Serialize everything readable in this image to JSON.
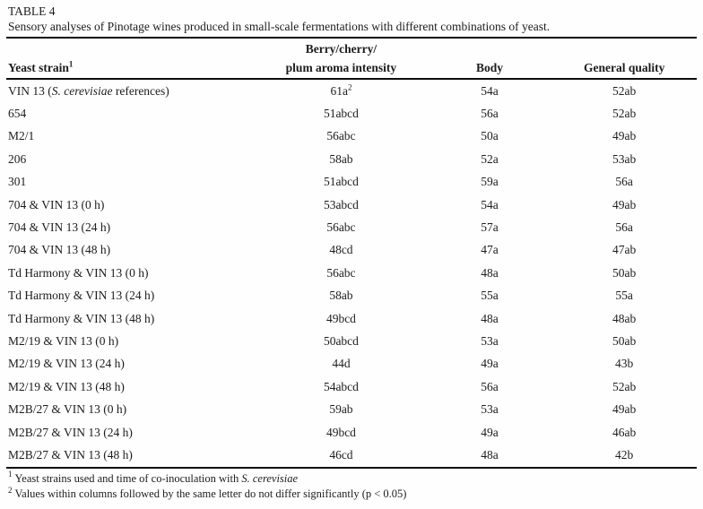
{
  "table_label": "TABLE 4",
  "caption": "Sensory analyses of Pinotage wines produced in small-scale fermentations with different combinations of yeast.",
  "header": {
    "col1": "Yeast strain",
    "col1_sup": "1",
    "col2_line1": "Berry/cherry/",
    "col2_line2": "plum aroma intensity",
    "col3": "Body",
    "col4": "General quality"
  },
  "reference_row": {
    "strain_prefix": "VIN 13 (",
    "strain_italic": "S. cerevisiae",
    "strain_suffix": " references)",
    "aroma": "61a",
    "aroma_sup": "2",
    "body": "54a",
    "quality": "52ab"
  },
  "rows": [
    {
      "strain": "654",
      "aroma": "51abcd",
      "body": "56a",
      "quality": "52ab"
    },
    {
      "strain": "M2/1",
      "aroma": "56abc",
      "body": "50a",
      "quality": "49ab"
    },
    {
      "strain": "206",
      "aroma": "58ab",
      "body": "52a",
      "quality": "53ab"
    },
    {
      "strain": "301",
      "aroma": "51abcd",
      "body": "59a",
      "quality": "56a"
    },
    {
      "strain": "704 & VIN 13 (0 h)",
      "aroma": "53abcd",
      "body": "54a",
      "quality": "49ab"
    },
    {
      "strain": "704 & VIN 13 (24 h)",
      "aroma": "56abc",
      "body": "57a",
      "quality": "56a"
    },
    {
      "strain": "704 & VIN 13 (48 h)",
      "aroma": "48cd",
      "body": "47a",
      "quality": "47ab"
    },
    {
      "strain": "Td Harmony & VIN 13 (0 h)",
      "aroma": "56abc",
      "body": "48a",
      "quality": "50ab"
    },
    {
      "strain": "Td Harmony & VIN 13 (24 h)",
      "aroma": "58ab",
      "body": "55a",
      "quality": "55a"
    },
    {
      "strain": "Td Harmony & VIN 13 (48 h)",
      "aroma": "49bcd",
      "body": "48a",
      "quality": "48ab"
    },
    {
      "strain": "M2/19 & VIN 13 (0 h)",
      "aroma": "50abcd",
      "body": "53a",
      "quality": "50ab"
    },
    {
      "strain": "M2/19 & VIN 13 (24 h)",
      "aroma": "44d",
      "body": "49a",
      "quality": "43b"
    },
    {
      "strain": "M2/19 & VIN 13 (48 h)",
      "aroma": "54abcd",
      "body": "56a",
      "quality": "52ab"
    },
    {
      "strain": "M2B/27 & VIN 13 (0 h)",
      "aroma": "59ab",
      "body": "53a",
      "quality": "49ab"
    },
    {
      "strain": "M2B/27 & VIN 13 (24 h)",
      "aroma": "49bcd",
      "body": "49a",
      "quality": "46ab"
    },
    {
      "strain": "M2B/27 & VIN 13 (48 h)",
      "aroma": "46cd",
      "body": "48a",
      "quality": "42b"
    }
  ],
  "footnotes": {
    "f1_sup": "1",
    "f1_text": "Yeast strains used and time of co-inoculation with ",
    "f1_italic": "S. cerevisiae",
    "f2_sup": "2",
    "f2_text": "Values within columns followed by the same letter do not differ significantly (p < 0.05)"
  }
}
